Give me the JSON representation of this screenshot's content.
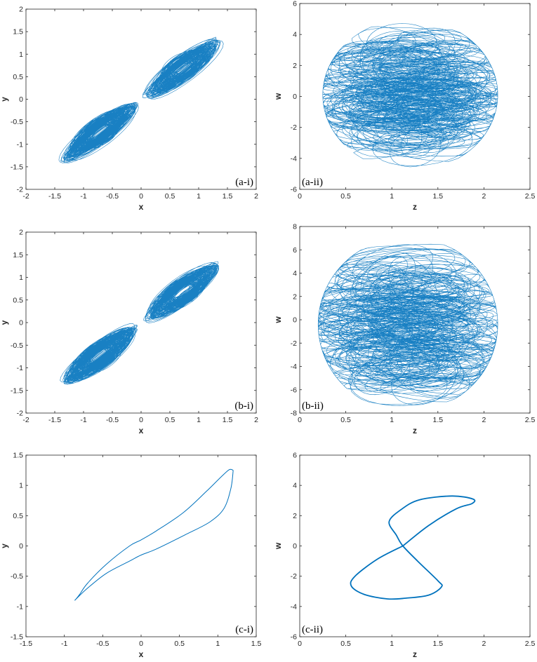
{
  "colors": {
    "line": "#0072BD",
    "axes": "#262626"
  },
  "chart_data": [
    {
      "id": "a-i",
      "type": "line",
      "panel_label": "(a-i)",
      "xlabel": "x",
      "ylabel": "y",
      "xlim": [
        -2,
        2
      ],
      "ylim": [
        -2,
        2
      ],
      "xticks": [
        "-2",
        "-1.5",
        "-1",
        "-0.5",
        "0",
        "0.5",
        "1",
        "1.5",
        "2"
      ],
      "yticks": [
        "-2",
        "-1.5",
        "-1",
        "-0.5",
        "0",
        "0.5",
        "1",
        "1.5",
        "2"
      ],
      "description": "chaotic double-scroll attractor along the diagonal",
      "extent": {
        "x": [
          -1.35,
          1.35
        ],
        "y": [
          -1.45,
          1.45
        ]
      },
      "grid": false
    },
    {
      "id": "a-ii",
      "type": "line",
      "panel_label": "(a-ii)",
      "xlabel": "z",
      "ylabel": "w",
      "xlim": [
        0,
        2.5
      ],
      "ylim": [
        -6,
        6
      ],
      "xticks": [
        "0",
        "0.5",
        "1",
        "1.5",
        "2",
        "2.5"
      ],
      "yticks": [
        "-6",
        "-4",
        "-2",
        "0",
        "2",
        "4",
        "6"
      ],
      "description": "chaotic attractor filling an oval region",
      "extent": {
        "x": [
          0.25,
          2.15
        ],
        "y": [
          -4.8,
          5.0
        ]
      },
      "grid": false
    },
    {
      "id": "b-i",
      "type": "line",
      "panel_label": "(b-i)",
      "xlabel": "x",
      "ylabel": "y",
      "xlim": [
        -2,
        2
      ],
      "ylim": [
        -2,
        2
      ],
      "xticks": [
        "-2",
        "-1.5",
        "-1",
        "-0.5",
        "0",
        "0.5",
        "1",
        "1.5",
        "2"
      ],
      "yticks": [
        "-2",
        "-1.5",
        "-1",
        "-0.5",
        "0",
        "0.5",
        "1",
        "1.5",
        "2"
      ],
      "description": "chaotic double-scroll attractor along the diagonal",
      "extent": {
        "x": [
          -1.35,
          1.4
        ],
        "y": [
          -1.4,
          1.5
        ]
      },
      "grid": false
    },
    {
      "id": "b-ii",
      "type": "line",
      "panel_label": "(b-ii)",
      "xlabel": "z",
      "ylabel": "w",
      "xlim": [
        0,
        2.5
      ],
      "ylim": [
        -8,
        8
      ],
      "xticks": [
        "0",
        "0.5",
        "1",
        "1.5",
        "2",
        "2.5"
      ],
      "yticks": [
        "-8",
        "-6",
        "-4",
        "-2",
        "0",
        "2",
        "4",
        "6",
        "8"
      ],
      "description": "chaotic attractor filling an oval region",
      "extent": {
        "x": [
          0.2,
          2.15
        ],
        "y": [
          -7.9,
          7.1
        ]
      },
      "grid": false
    },
    {
      "id": "c-i",
      "type": "line",
      "panel_label": "(c-i)",
      "xlabel": "x",
      "ylabel": "y",
      "xlim": [
        -1.5,
        1.5
      ],
      "ylim": [
        -1.5,
        1.5
      ],
      "xticks": [
        "-1.5",
        "-1",
        "-0.5",
        "0",
        "0.5",
        "1",
        "1.5"
      ],
      "yticks": [
        "-1.5",
        "-1",
        "-0.5",
        "0",
        "0.5",
        "1",
        "1.5"
      ],
      "description": "periodic elongated limit cycle",
      "x": [
        1.2,
        1.17,
        1.08,
        0.9,
        0.6,
        0.2,
        0.0,
        -0.15,
        -0.45,
        -0.7,
        -0.85,
        -0.85,
        -0.8,
        -0.7,
        -0.45,
        -0.15,
        0.0,
        0.2,
        0.55,
        0.85,
        1.05,
        1.15,
        1.2
      ],
      "y": [
        1.25,
        0.95,
        0.62,
        0.4,
        0.2,
        -0.05,
        -0.15,
        -0.25,
        -0.45,
        -0.7,
        -0.88,
        -0.88,
        -0.8,
        -0.62,
        -0.3,
        0.0,
        0.1,
        0.25,
        0.55,
        0.9,
        1.15,
        1.26,
        1.25
      ]
    },
    {
      "id": "c-ii",
      "type": "line",
      "panel_label": "(c-ii)",
      "xlabel": "z",
      "ylabel": "w",
      "xlim": [
        0,
        2.5
      ],
      "ylim": [
        -6,
        6
      ],
      "xticks": [
        "0",
        "0.5",
        "1",
        "1.5",
        "2",
        "2.5"
      ],
      "yticks": [
        "-6",
        "-4",
        "-2",
        "0",
        "2",
        "4",
        "6"
      ],
      "description": "periodic figure-eight limit cycle",
      "x": [
        1.12,
        1.4,
        1.7,
        1.87,
        1.88,
        1.65,
        1.3,
        1.1,
        0.97,
        1.05,
        1.12,
        1.28,
        1.5,
        1.54,
        1.4,
        1.15,
        0.95,
        0.7,
        0.56,
        0.6,
        0.85,
        1.12
      ],
      "y": [
        0.0,
        1.35,
        2.45,
        2.8,
        3.1,
        3.3,
        3.05,
        2.4,
        1.6,
        0.7,
        0.0,
        -1.0,
        -2.3,
        -2.7,
        -3.25,
        -3.45,
        -3.5,
        -3.2,
        -2.65,
        -2.0,
        -0.85,
        0.0
      ]
    }
  ]
}
